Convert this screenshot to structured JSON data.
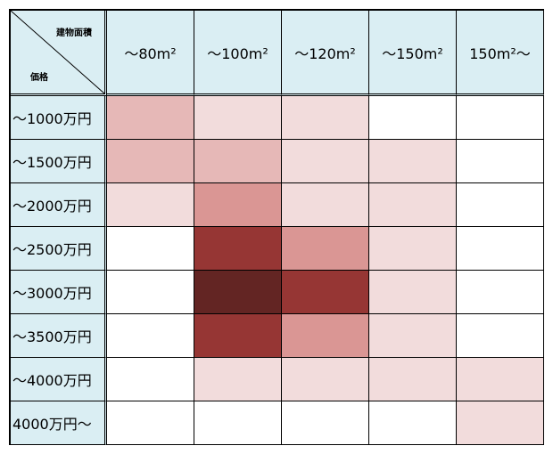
{
  "corner": {
    "column_label": "建物面積",
    "row_label": "価格"
  },
  "columns": [
    "～80m²",
    "～100m²",
    "～120m²",
    "～150m²",
    "150m²～"
  ],
  "rows": [
    {
      "label": "～1000万円",
      "colors": [
        "#e6b8b7",
        "#f2dcdc",
        "#f2dcdc",
        "#ffffff",
        "#ffffff"
      ]
    },
    {
      "label": "～1500万円",
      "colors": [
        "#e6b8b7",
        "#e6b8b7",
        "#f2dcdc",
        "#f2dcdc",
        "#ffffff"
      ]
    },
    {
      "label": "～2000万円",
      "colors": [
        "#f2dcdc",
        "#da9694",
        "#f2dcdc",
        "#f2dcdc",
        "#ffffff"
      ]
    },
    {
      "label": "～2500万円",
      "colors": [
        "#ffffff",
        "#963634",
        "#da9694",
        "#f2dcdc",
        "#ffffff"
      ]
    },
    {
      "label": "～3000万円",
      "colors": [
        "#ffffff",
        "#632523",
        "#963634",
        "#f2dcdc",
        "#ffffff"
      ]
    },
    {
      "label": "～3500万円",
      "colors": [
        "#ffffff",
        "#963634",
        "#da9694",
        "#f2dcdc",
        "#ffffff"
      ]
    },
    {
      "label": "～4000万円",
      "colors": [
        "#ffffff",
        "#f2dcdc",
        "#f2dcdc",
        "#f2dcdc",
        "#f2dcdc"
      ]
    },
    {
      "label": "4000万円～",
      "colors": [
        "#ffffff",
        "#ffffff",
        "#ffffff",
        "#ffffff",
        "#f2dcdc"
      ]
    }
  ]
}
